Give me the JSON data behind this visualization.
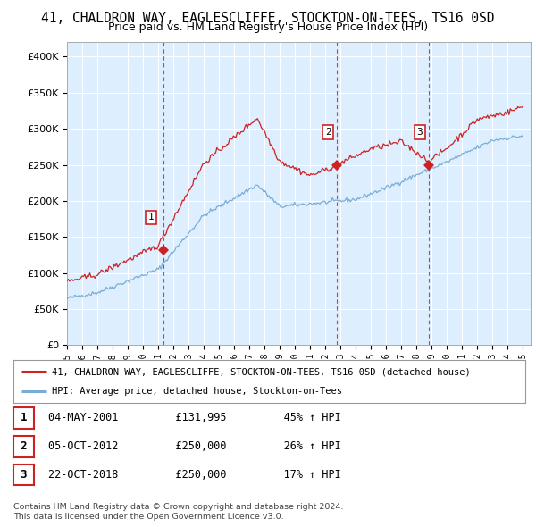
{
  "title": "41, CHALDRON WAY, EAGLESCLIFFE, STOCKTON-ON-TEES, TS16 0SD",
  "subtitle": "Price paid vs. HM Land Registry's House Price Index (HPI)",
  "ylim": [
    0,
    420000
  ],
  "yticks": [
    0,
    50000,
    100000,
    150000,
    200000,
    250000,
    300000,
    350000,
    400000
  ],
  "xlim_start": 1995.0,
  "xlim_end": 2025.5,
  "purchases": [
    {
      "label": "1",
      "date_num": 2001.34,
      "price": 131995
    },
    {
      "label": "2",
      "date_num": 2012.76,
      "price": 250000
    },
    {
      "label": "3",
      "date_num": 2018.81,
      "price": 250000
    }
  ],
  "legend_line1": "41, CHALDRON WAY, EAGLESCLIFFE, STOCKTON-ON-TEES, TS16 0SD (detached house)",
  "legend_line2": "HPI: Average price, detached house, Stockton-on-Tees",
  "table_rows": [
    {
      "num": "1",
      "date": "04-MAY-2001",
      "price": "£131,995",
      "pct": "45% ↑ HPI"
    },
    {
      "num": "2",
      "date": "05-OCT-2012",
      "price": "£250,000",
      "pct": "26% ↑ HPI"
    },
    {
      "num": "3",
      "date": "22-OCT-2018",
      "price": "£250,000",
      "pct": "17% ↑ HPI"
    }
  ],
  "footer1": "Contains HM Land Registry data © Crown copyright and database right 2024.",
  "footer2": "This data is licensed under the Open Government Licence v3.0.",
  "hpi_color": "#7aadd4",
  "price_color": "#cc2222",
  "vline_color": "#cc2222",
  "bg_color": "#ddeeff",
  "grid_color": "#ffffff",
  "xtick_years": [
    1995,
    1996,
    1997,
    1998,
    1999,
    2000,
    2001,
    2002,
    2003,
    2004,
    2005,
    2006,
    2007,
    2008,
    2009,
    2010,
    2011,
    2012,
    2013,
    2014,
    2015,
    2016,
    2017,
    2018,
    2019,
    2020,
    2021,
    2022,
    2023,
    2024,
    2025
  ]
}
